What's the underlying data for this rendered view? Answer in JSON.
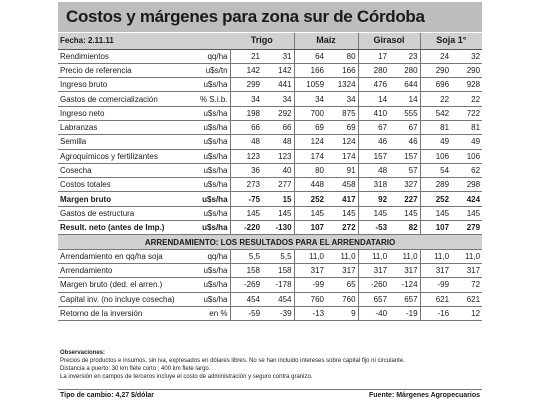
{
  "title": "Costos y márgenes para zona sur de Córdoba",
  "date_label": "Fecha: 2.11.11",
  "crops": [
    "Trigo",
    "Maíz",
    "Girasol",
    "Soja 1°"
  ],
  "rows": [
    {
      "label": "Rendimientos",
      "unit": "qq/ha",
      "values": [
        "21",
        "31",
        "64",
        "80",
        "17",
        "23",
        "24",
        "32"
      ],
      "bold": false
    },
    {
      "label": "Precio de referencia",
      "unit": "u$s/tn",
      "values": [
        "142",
        "142",
        "166",
        "166",
        "280",
        "280",
        "290",
        "290"
      ],
      "bold": false
    },
    {
      "label": "Ingreso bruto",
      "unit": "u$s/ha",
      "values": [
        "299",
        "441",
        "1059",
        "1324",
        "476",
        "644",
        "696",
        "928"
      ],
      "bold": false
    },
    {
      "label": "Gastos de comercialización",
      "unit": "% S.i.b.",
      "values": [
        "34",
        "34",
        "34",
        "34",
        "14",
        "14",
        "22",
        "22"
      ],
      "bold": false
    },
    {
      "label": "Ingreso neto",
      "unit": "u$s/ha",
      "values": [
        "198",
        "292",
        "700",
        "875",
        "410",
        "555",
        "542",
        "722"
      ],
      "bold": false
    },
    {
      "label": "Labranzas",
      "unit": "u$s/ha",
      "values": [
        "66",
        "66",
        "69",
        "69",
        "67",
        "67",
        "81",
        "81"
      ],
      "bold": false
    },
    {
      "label": "Semilla",
      "unit": "u$s/ha",
      "values": [
        "48",
        "48",
        "124",
        "124",
        "46",
        "46",
        "49",
        "49"
      ],
      "bold": false
    },
    {
      "label": "Agroquímicos y fertilizantes",
      "unit": "u$s/ha",
      "values": [
        "123",
        "123",
        "174",
        "174",
        "157",
        "157",
        "106",
        "106"
      ],
      "bold": false
    },
    {
      "label": "Cosecha",
      "unit": "u$s/ha",
      "values": [
        "36",
        "40",
        "80",
        "91",
        "48",
        "57",
        "54",
        "62"
      ],
      "bold": false
    },
    {
      "label": "Costos totales",
      "unit": "u$s/ha",
      "values": [
        "273",
        "277",
        "448",
        "458",
        "318",
        "327",
        "289",
        "298"
      ],
      "bold": false
    },
    {
      "label": "Margen bruto",
      "unit": "u$s/ha",
      "values": [
        "-75",
        "15",
        "252",
        "417",
        "92",
        "227",
        "252",
        "424"
      ],
      "bold": true
    },
    {
      "label": "Gastos de estructura",
      "unit": "u$s/ha",
      "values": [
        "145",
        "145",
        "145",
        "145",
        "145",
        "145",
        "145",
        "145"
      ],
      "bold": false
    },
    {
      "label": "Result. neto (antes de Imp.)",
      "unit": "u$s/ha",
      "values": [
        "-220",
        "-130",
        "107",
        "272",
        "-53",
        "82",
        "107",
        "279"
      ],
      "bold": true
    }
  ],
  "section2_title": "ARRENDAMIENTO: LOS RESULTADOS PARA EL ARRENDATARIO",
  "rows2": [
    {
      "label": "Arrendamiento en qq/ha soja",
      "unit": "qq/ha",
      "values": [
        "5,5",
        "5,5",
        "11,0",
        "11,0",
        "11,0",
        "11,0",
        "11,0",
        "11,0"
      ]
    },
    {
      "label": "Arrendamiento",
      "unit": "u$s/ha",
      "values": [
        "158",
        "158",
        "317",
        "317",
        "317",
        "317",
        "317",
        "317"
      ]
    },
    {
      "label": "Margen bruto (ded. el arren.)",
      "unit": "u$s/ha",
      "values": [
        "-269",
        "-178",
        "-99",
        "65",
        "-260",
        "-124",
        "-99",
        "72"
      ]
    },
    {
      "label": "Capital inv. (no incluye cosecha)",
      "unit": "u$s/ha",
      "values": [
        "454",
        "454",
        "760",
        "760",
        "657",
        "657",
        "621",
        "621"
      ]
    },
    {
      "label": "Retorno de la inversión",
      "unit": "en %",
      "values": [
        "-59",
        "-39",
        "-13",
        "9",
        "-40",
        "-19",
        "-16",
        "12"
      ]
    }
  ],
  "observations": {
    "title": "Observaciones:",
    "lines": [
      "Precios de productos e insumos, sin iva, expresados en dólares libres. No se han incluido intereses sobre capital fijo ni circulante.",
      "Distancia a puerto: 30 km  flete corto ; 400 km flete largo.",
      "La inversión en campos de terceros incluye el costo de administración y seguro contra granizo."
    ]
  },
  "footer": {
    "exchange_rate": "Tipo de cambio: 4,27 $/dólar",
    "source": "Fuente: Márgenes Agropecuarios"
  },
  "colors": {
    "header_bg": "#d0d0d0",
    "title_bg": "#bdbdbd"
  }
}
